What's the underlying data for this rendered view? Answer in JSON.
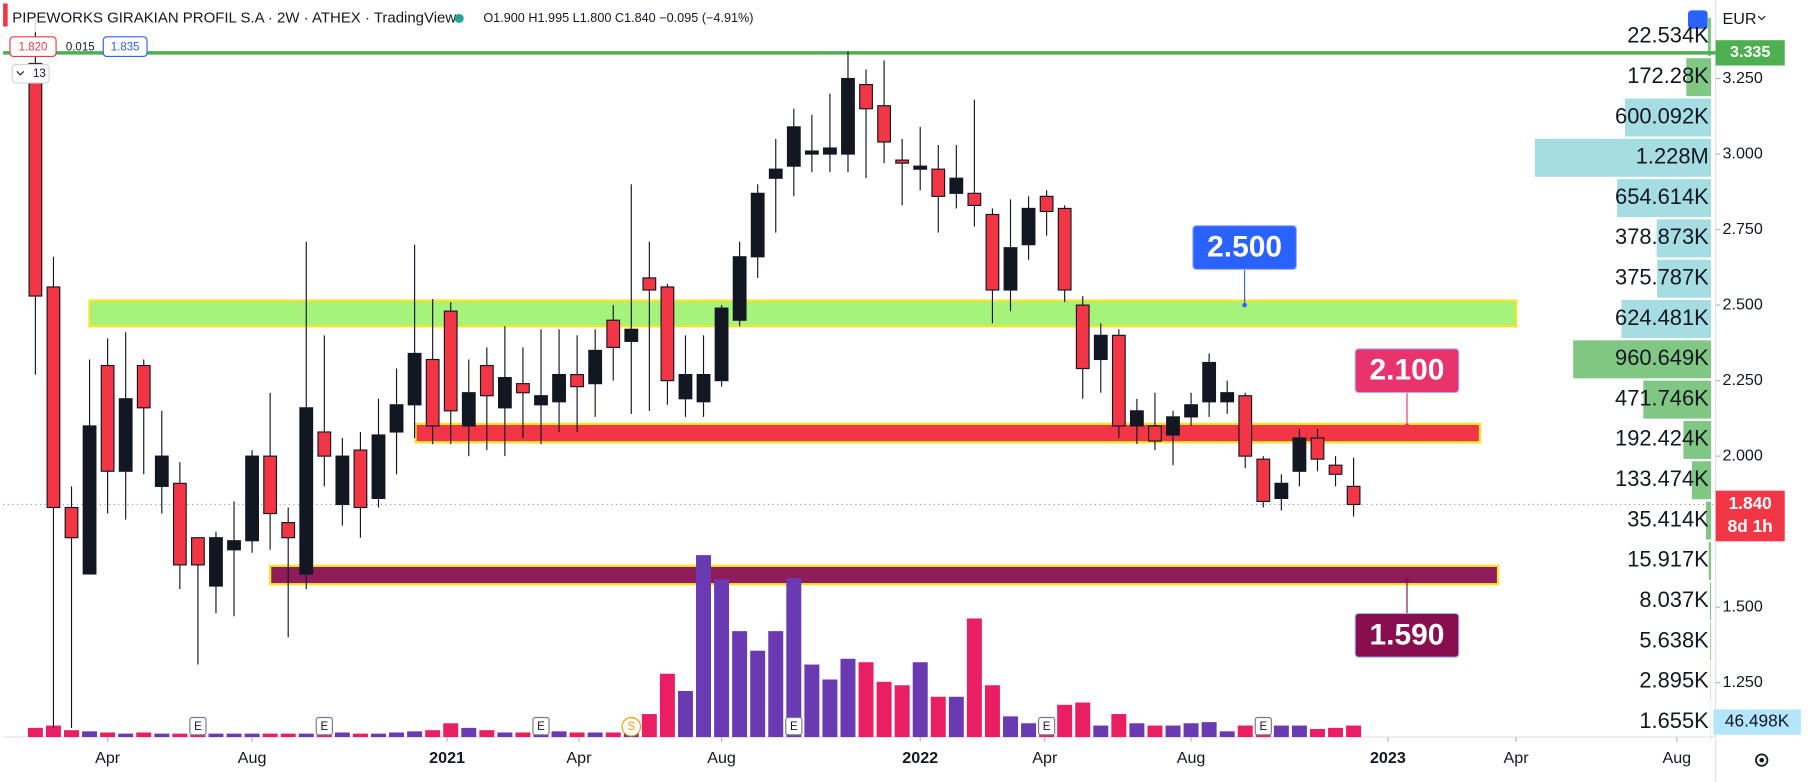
{
  "chart_data": {
    "type": "candlestick",
    "title": "PIPEWORKS GIRAKIAN PROFIL S.A · 2W · ATHEX · TradingView",
    "legend_text": "O1.900 H1.995 L1.800 C1.840 −0.095 (−4.91%)",
    "sell_price": "1.820",
    "spread": "0.015",
    "buy_price": "1.835",
    "indicator_count": "13",
    "currency": "EUR",
    "xlim": [
      -1.79,
      93.05
    ],
    "xticks": [
      {
        "value": 4,
        "label": "Apr"
      },
      {
        "value": 12,
        "label": "Aug"
      },
      {
        "value": 22.8,
        "label": "2021"
      },
      {
        "value": 30.1,
        "label": "Apr"
      },
      {
        "value": 38,
        "label": "Aug"
      },
      {
        "value": 49,
        "label": "2022"
      },
      {
        "value": 55.9,
        "label": "Apr"
      },
      {
        "value": 64,
        "label": "Aug"
      },
      {
        "value": 74.9,
        "label": "2023"
      },
      {
        "value": 82,
        "label": "Apr"
      },
      {
        "value": 90.9,
        "label": "Aug"
      }
    ],
    "ylim": [
      1.07,
      3.51
    ],
    "yticks": [
      {
        "value": 3.25,
        "label": "3.250"
      },
      {
        "value": 3.0,
        "label": "3.000"
      },
      {
        "value": 2.75,
        "label": "2.750"
      },
      {
        "value": 2.5,
        "label": "2.500"
      },
      {
        "value": 2.25,
        "label": "2.250"
      },
      {
        "value": 2.0,
        "label": "2.000"
      },
      {
        "value": 1.5,
        "label": "1.500"
      },
      {
        "value": 1.25,
        "label": "1.250"
      }
    ],
    "up_color": "#131722",
    "down_color": "#f23645",
    "volume_up_color": "#6a3ab2",
    "volume_down_color": "#e91e63",
    "open": [
      3.3,
      2.56,
      1.83,
      1.61,
      2.3,
      1.95,
      2.3,
      1.9,
      1.91,
      1.73,
      1.57,
      1.69,
      1.72,
      2.0,
      1.78,
      1.61,
      2.08,
      1.84,
      2.02,
      1.86,
      2.08,
      2.17,
      2.32,
      2.48,
      2.1,
      2.3,
      2.16,
      2.24,
      2.17,
      2.18,
      2.27,
      2.24,
      2.45,
      2.38,
      2.59,
      2.56,
      2.19,
      2.18,
      2.25,
      2.45,
      2.66,
      2.92,
      2.96,
      3.0,
      3.0,
      3.0,
      3.23,
      3.16,
      2.98,
      2.95,
      2.95,
      2.87,
      2.87,
      2.8,
      2.55,
      2.7,
      2.86,
      2.82,
      2.5,
      2.32,
      2.4,
      2.1,
      2.1,
      2.07,
      2.13,
      2.18,
      2.18,
      2.2,
      1.99,
      1.86,
      1.95,
      2.06,
      1.97,
      1.9
    ],
    "high": [
      3.47,
      2.66,
      1.9,
      2.32,
      2.39,
      2.41,
      2.32,
      2.15,
      1.98,
      1.73,
      1.75,
      1.85,
      2.02,
      2.21,
      1.83,
      2.71,
      2.4,
      2.06,
      2.08,
      2.19,
      2.29,
      2.7,
      2.52,
      2.51,
      2.32,
      2.36,
      2.43,
      2.36,
      2.42,
      2.42,
      2.4,
      2.42,
      2.5,
      2.9,
      2.71,
      2.57,
      2.4,
      2.4,
      2.5,
      2.71,
      2.9,
      3.05,
      3.15,
      3.13,
      3.2,
      3.34,
      3.28,
      3.31,
      3.05,
      3.09,
      3.03,
      3.03,
      3.18,
      2.82,
      2.85,
      2.86,
      2.88,
      2.83,
      2.53,
      2.44,
      2.42,
      2.19,
      2.21,
      2.15,
      2.21,
      2.34,
      2.25,
      2.21,
      2.0,
      1.94,
      2.09,
      2.09,
      2.0,
      1.995
    ],
    "low": [
      2.27,
      1.1,
      1.1,
      1.61,
      1.81,
      1.79,
      1.94,
      1.81,
      1.56,
      1.31,
      1.48,
      1.47,
      1.68,
      1.69,
      1.4,
      1.56,
      1.9,
      1.77,
      1.73,
      1.83,
      1.94,
      2.06,
      2.04,
      2.04,
      2.0,
      2.02,
      2.0,
      2.06,
      2.04,
      2.08,
      2.08,
      2.13,
      2.25,
      2.14,
      2.15,
      2.17,
      2.13,
      2.13,
      2.23,
      2.43,
      2.59,
      2.74,
      2.86,
      2.94,
      2.94,
      2.94,
      2.92,
      2.97,
      2.83,
      2.88,
      2.74,
      2.82,
      2.76,
      2.44,
      2.48,
      2.65,
      2.73,
      2.51,
      2.19,
      2.21,
      2.06,
      2.04,
      2.02,
      1.97,
      2.1,
      2.13,
      2.14,
      1.96,
      1.83,
      1.82,
      1.9,
      1.95,
      1.9,
      1.8
    ],
    "close": [
      2.53,
      1.83,
      1.73,
      2.1,
      1.95,
      2.19,
      2.16,
      2.0,
      1.64,
      1.64,
      1.73,
      1.72,
      2.0,
      1.81,
      1.73,
      2.16,
      2.0,
      2.0,
      1.83,
      2.07,
      2.17,
      2.34,
      2.1,
      2.15,
      2.21,
      2.2,
      2.26,
      2.21,
      2.2,
      2.27,
      2.23,
      2.35,
      2.36,
      2.42,
      2.55,
      2.25,
      2.27,
      2.27,
      2.49,
      2.66,
      2.87,
      2.95,
      3.09,
      3.01,
      3.02,
      3.25,
      3.15,
      3.04,
      2.97,
      2.96,
      2.86,
      2.92,
      2.83,
      2.55,
      2.69,
      2.82,
      2.81,
      2.55,
      2.29,
      2.4,
      2.1,
      2.15,
      2.05,
      2.13,
      2.17,
      2.31,
      2.21,
      2.0,
      1.85,
      1.91,
      2.06,
      1.99,
      1.94,
      1.84
    ],
    "volume": [
      8,
      10,
      6,
      5,
      4,
      3,
      4,
      3,
      3,
      3,
      3,
      3,
      3,
      3,
      3,
      3,
      4,
      4,
      3,
      3,
      4,
      5,
      6,
      12,
      8,
      6,
      4,
      4,
      4,
      5,
      4,
      4,
      4,
      8,
      20,
      55,
      40,
      158,
      137,
      92,
      75,
      92,
      138,
      63,
      50,
      68,
      65,
      48,
      45,
      65,
      35,
      35,
      103,
      45,
      18,
      12,
      15,
      28,
      30,
      10,
      20,
      12,
      10,
      10,
      12,
      13,
      5,
      10,
      8,
      10,
      10,
      7,
      8,
      10
    ],
    "zones": [
      {
        "from": 2.43,
        "to": 2.515,
        "x": [
          3,
          82
        ],
        "color": "#a5f37a",
        "border": "#f5e52a",
        "level": {
          "value": 2.5,
          "label": "2.500"
        },
        "label_color": "#2962ff"
      },
      {
        "from": 2.046,
        "to": 2.107,
        "x": [
          21.05,
          80
        ],
        "color": "#f23645",
        "border": "#f5e52a",
        "level": {
          "value": 2.1,
          "label": "2.100"
        },
        "label_color": "#e8336d"
      },
      {
        "from": 1.576,
        "to": 1.637,
        "x": [
          13,
          81
        ],
        "color": "#8e1c5a",
        "border": "#f5e52a",
        "level": {
          "value": 1.59,
          "label": "1.590"
        },
        "label_color": "#880e4f"
      }
    ],
    "hline": {
      "value": 3.335,
      "label": "3.335",
      "color": "#4caf50"
    },
    "last_price": {
      "value": 1.84,
      "label": "1.840",
      "color": "#f23645"
    },
    "countdown": "8d 1h",
    "volume_last": "46.498K",
    "events": [
      {
        "label": "E",
        "x": 9
      },
      {
        "label": "E",
        "x": 16
      },
      {
        "label": "E",
        "x": 28
      },
      {
        "label": "S",
        "x": 33
      },
      {
        "label": "E",
        "x": 42
      },
      {
        "label": "E",
        "x": 56
      },
      {
        "label": "E",
        "x": 68
      }
    ],
    "profile": {
      "values": [
        22534,
        172280,
        600092,
        1228000,
        654614,
        378873,
        375787,
        624481,
        960649,
        471746,
        192424,
        133474,
        35414,
        15917,
        8037,
        5638,
        2895,
        1655
      ],
      "value_labels": [
        "22.534K",
        "172.28K",
        "600.092K",
        "1.228M",
        "654.614K",
        "378.873K",
        "375.787K",
        "624.481K",
        "960.649K",
        "471.746K",
        "192.424K",
        "133.474K",
        "35.414K",
        "15.917K",
        "8.037K",
        "5.638K",
        "2.895K",
        "1.655K"
      ],
      "colors": [
        "#81c784",
        "#81c784",
        "#a6dde3",
        "#a6dde3",
        "#a6dde3",
        "#a6dde3",
        "#a6dde3",
        "#a6dde3",
        "#81c784",
        "#81c784",
        "#81c784",
        "#81c784",
        "#81c784",
        "#81c784",
        "#81c784",
        "#81c784",
        "#81c784",
        "#81c784"
      ]
    }
  }
}
